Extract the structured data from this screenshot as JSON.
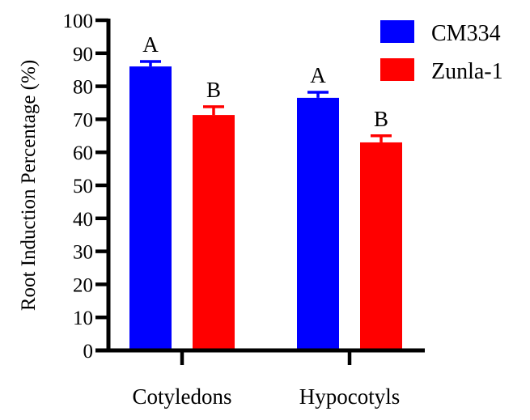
{
  "chart_data": {
    "type": "bar",
    "title": "",
    "xlabel": "",
    "ylabel": "Root Induction Percentage (%)",
    "ylim": [
      0,
      100
    ],
    "yticks": [
      0,
      10,
      20,
      30,
      40,
      50,
      60,
      70,
      80,
      90,
      100
    ],
    "grid": false,
    "legend_position": "top-right",
    "categories": [
      "Cotyledons",
      "Hypocotyls"
    ],
    "series": [
      {
        "name": "CM334",
        "color": "#0000ff",
        "values": [
          86,
          76.5
        ],
        "error": [
          1.5,
          1.7
        ],
        "significance": [
          "A",
          "A"
        ]
      },
      {
        "name": "Zunla-1",
        "color": "#ff0000",
        "values": [
          71.3,
          63
        ],
        "error": [
          2.5,
          2
        ],
        "significance": [
          "B",
          "B"
        ]
      }
    ]
  }
}
